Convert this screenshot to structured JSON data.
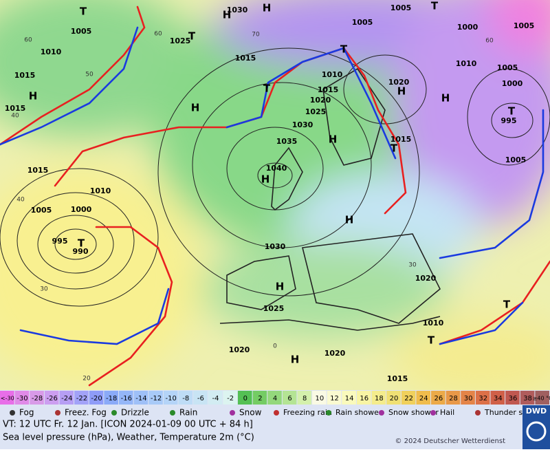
{
  "map": {
    "pressure_labels": [
      "1030",
      "1005",
      "1005",
      "1000",
      "1005",
      "1005",
      "1025",
      "1010",
      "1015",
      "1010",
      "1005",
      "1010",
      "1000",
      "1020",
      "1015",
      "1015",
      "1020",
      "1015",
      "1025",
      "1030",
      "995",
      "1015",
      "1035",
      "1040",
      "1005",
      "1015",
      "1010",
      "1005",
      "1000",
      "995",
      "990",
      "1030",
      "1020",
      "1025",
      "1010",
      "1020",
      "1020",
      "1015"
    ],
    "centers": [
      "H",
      "H",
      "T",
      "T",
      "T",
      "H",
      "H",
      "T",
      "H",
      "H",
      "T",
      "H",
      "T",
      "H",
      "H",
      "T",
      "H",
      "H",
      "T",
      "T",
      "T"
    ],
    "temperature_labels": [
      "60",
      "60",
      "50",
      "70",
      "60",
      "40",
      "40",
      "30",
      "20",
      "0",
      "30"
    ]
  },
  "legend": {
    "temperature_scale": [
      "<-30",
      -30,
      -28,
      -26,
      -24,
      -22,
      -20,
      -18,
      -16,
      -14,
      -12,
      -10,
      -8,
      -6,
      -4,
      -2,
      0,
      2,
      4,
      6,
      8,
      10,
      12,
      14,
      16,
      18,
      20,
      22,
      24,
      26,
      28,
      30,
      32,
      34,
      36,
      38,
      "≥40 °C"
    ],
    "colors": [
      "#e86ee8",
      "#e08ae8",
      "#d89ae8",
      "#cc9ef0",
      "#b69ef4",
      "#a2a2f8",
      "#8e9cf8",
      "#8aaaf8",
      "#94b6f8",
      "#9ec0f8",
      "#a8caf8",
      "#b4d4f8",
      "#bedcf6",
      "#c8e4f4",
      "#d2ecf2",
      "#dcf4f0",
      "#54c054",
      "#74cc64",
      "#94d87c",
      "#b4e494",
      "#d4f0ac",
      "#fafae4",
      "#fafad0",
      "#fafabc",
      "#f8f4a4",
      "#f4ec8c",
      "#f0e074",
      "#f0d05c",
      "#f0bc4c",
      "#ecaa48",
      "#e89848",
      "#e48448",
      "#dc7048",
      "#d06048",
      "#c05850",
      "#b05c5c",
      "#a06060"
    ],
    "weather": [
      "Fog",
      "Freez. Fog",
      "Drizzle",
      "Rain",
      "Snow",
      "Freezing rain",
      "Rain shower",
      "Snow shower",
      "Hail",
      "Thunder storm"
    ]
  },
  "footer": {
    "valid_time": "VT: 12 UTC Fr.  12 Jan. [ICON 2024-01-09  00 UTC + 84 h]",
    "description": "Sea level pressure (hPa), Weather, Temperature 2m (°C)",
    "copyright": "© 2024 Deutscher Wetterdienst",
    "logo": "DWD"
  }
}
